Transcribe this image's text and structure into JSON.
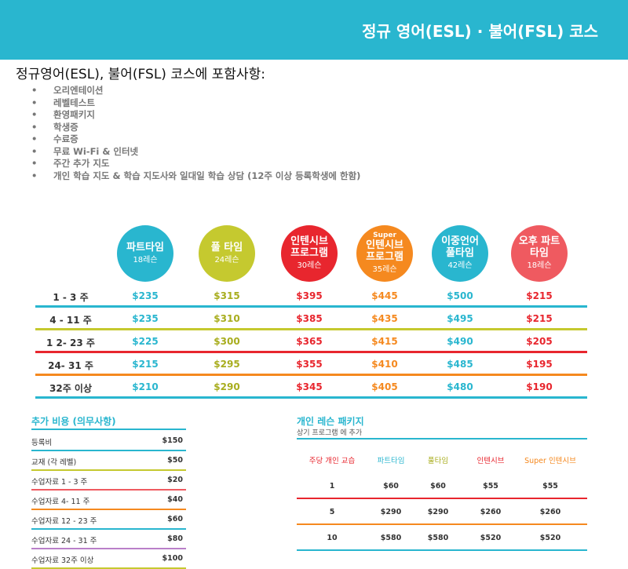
{
  "banner": {
    "title": "정규 영어(ESL) · 불어(FSL) 코스"
  },
  "subtitle": "정규영어(ESL), 불어(FSL) 코스에 포함사항:",
  "inclusions": [
    "오리엔테이션",
    "레벨테스트",
    "환영패키지",
    "학생증",
    "수료증",
    "무료 Wi-Fi & 인터넷",
    "주간 추가 지도",
    "개인 학습 지도 & 학습 지도사와 일대일 학습 상담 (12주 이상 등록학생에 한함)"
  ],
  "bullet": "•",
  "programs": [
    {
      "sup": "",
      "name": "파트타임",
      "lessons": "18레슨",
      "color": "#29b6cf"
    },
    {
      "sup": "",
      "name": "풀 타임",
      "lessons": "24레슨",
      "color": "#c5c92f"
    },
    {
      "sup": "",
      "name": "인텐시브 프로그램",
      "lessons": "30레슨",
      "color": "#e8262e"
    },
    {
      "sup": "Super",
      "name": "인텐시브 프로그램",
      "lessons": "35레슨",
      "color": "#f5891f"
    },
    {
      "sup": "",
      "name": "이중언어 풀타임",
      "lessons": "42레슨",
      "color": "#29b6cf"
    },
    {
      "sup": "",
      "name": "오후 파트타임",
      "lessons": "18레슨",
      "color": "#ef5a60"
    }
  ],
  "price_colors": [
    "#29b6cf",
    "#a8ad1e",
    "#e8262e",
    "#f5891f",
    "#29b6cf",
    "#e8262e"
  ],
  "price_rows": [
    {
      "weeks": "1 - 3 주",
      "prices": [
        "$235",
        "$315",
        "$395",
        "$445",
        "$500",
        "$215"
      ],
      "line": "#29b6cf"
    },
    {
      "weeks": "4 - 11 주",
      "prices": [
        "$235",
        "$310",
        "$385",
        "$435",
        "$495",
        "$215"
      ],
      "line": "#c5c92f"
    },
    {
      "weeks": "1 2- 23 주",
      "prices": [
        "$225",
        "$300",
        "$365",
        "$415",
        "$490",
        "$205"
      ],
      "line": "#e8262e"
    },
    {
      "weeks": "24- 31 주",
      "prices": [
        "$215",
        "$295",
        "$355",
        "$410",
        "$485",
        "$195"
      ],
      "line": "#f5891f"
    },
    {
      "weeks": "32주 이상",
      "prices": [
        "$210",
        "$290",
        "$345",
        "$405",
        "$480",
        "$190"
      ],
      "line": "#29b6cf"
    }
  ],
  "fees": {
    "title": "추가 비용 (의무사항)",
    "rows": [
      {
        "label": "등록비",
        "amount": "$150",
        "line": "#29b6cf"
      },
      {
        "label": "교재 (각 레벨)",
        "amount": "$50",
        "line": "#c5c92f"
      },
      {
        "label": "수업자료 1 - 3 주",
        "amount": "$20",
        "line": "#ef5a60"
      },
      {
        "label": "수업자료 4- 11 주",
        "amount": "$40",
        "line": "#f5891f"
      },
      {
        "label": "수업자료 12 - 23 주",
        "amount": "$60",
        "line": "#29b6cf"
      },
      {
        "label": "수업자료 24 - 31 주",
        "amount": "$80",
        "line": "#b97fc9"
      },
      {
        "label": "수업자료 32주 이상",
        "amount": "$100",
        "line": "#c5c92f"
      }
    ]
  },
  "packages": {
    "title": "개인 레슨 패키지",
    "subtitle": "상기 프로그램 에 추가",
    "headers": [
      {
        "text": "주당 개인 교습",
        "color": "#e8262e"
      },
      {
        "text": "파트타임",
        "color": "#29b6cf"
      },
      {
        "text": "풀타임",
        "color": "#a8ad1e"
      },
      {
        "text": "인텐시브",
        "color": "#e8262e"
      },
      {
        "text": "Super 인텐시브",
        "color": "#f5891f"
      }
    ],
    "rows": [
      {
        "cells": [
          "1",
          "$60",
          "$60",
          "$55",
          "$55"
        ],
        "line": "#e8262e"
      },
      {
        "cells": [
          "5",
          "$290",
          "$290",
          "$260",
          "$260"
        ],
        "line": "#f5891f"
      },
      {
        "cells": [
          "10",
          "$580",
          "$580",
          "$520",
          "$520"
        ],
        "line": "#29b6cf"
      }
    ]
  }
}
